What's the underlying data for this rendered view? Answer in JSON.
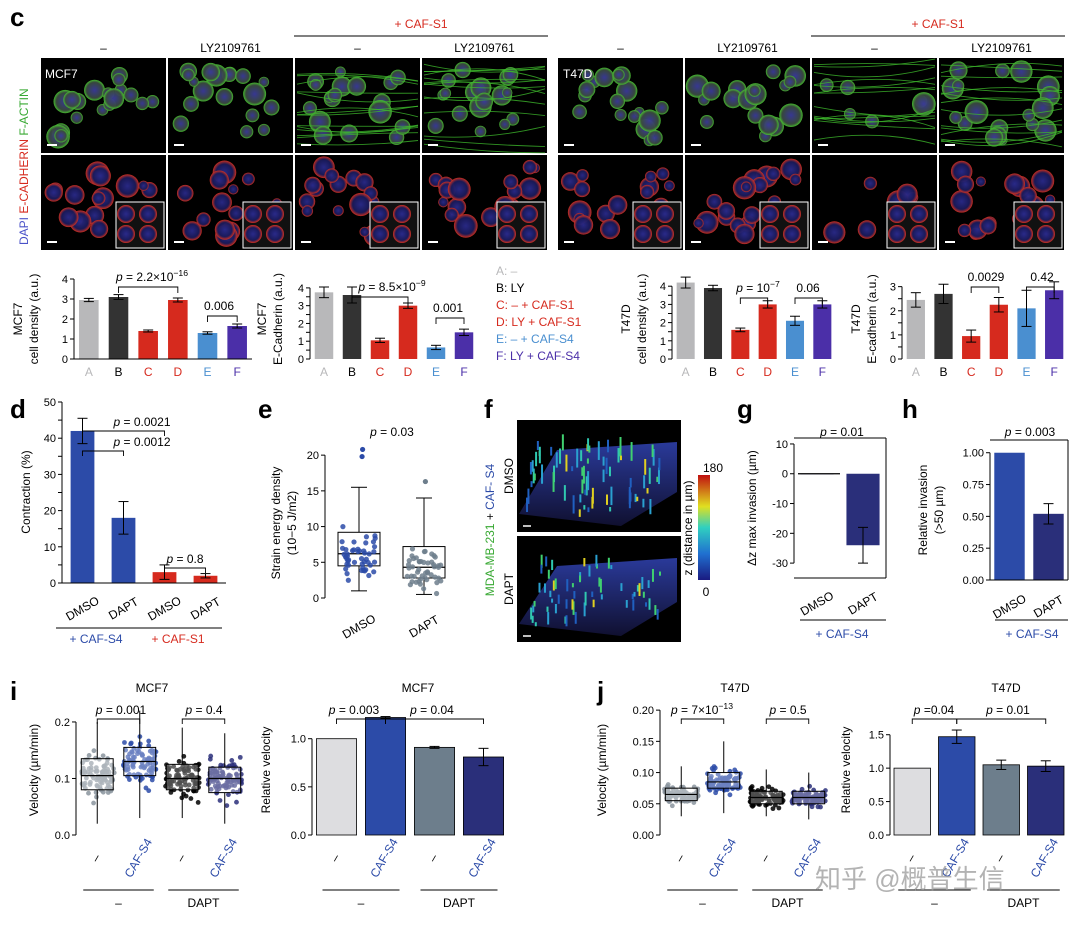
{
  "panel_labels": [
    "c",
    "d",
    "e",
    "f",
    "g",
    "h",
    "i",
    "j"
  ],
  "colors": {
    "red": "#d62a1e",
    "blue": "#2c4ba8",
    "navy": "#2a2f7a",
    "lightgray": "#b8b8ba",
    "dark": "#333333",
    "lightblue": "#4a8fd0",
    "purple": "#4b2fa8",
    "slate": "#6d7e8c",
    "grayish": "#dddde0"
  },
  "section_c": {
    "mcf7_header": {
      "top": "+ CAF-S1",
      "cond": [
        "–",
        "LY2109761",
        "–",
        "LY2109761"
      ]
    },
    "t47d_header": {
      "top": "+ CAF-S1",
      "cond": [
        "–",
        "LY2109761",
        "–",
        "LY2109761"
      ]
    },
    "mcf7_label": "MCF7",
    "t47d_label": "T47D",
    "side_label_parts": [
      "DAPI ",
      "E-CADHERIN ",
      "F-ACTIN"
    ],
    "legend": [
      "A: –",
      "B: LY",
      "C: – + CAF-S1",
      "D: LY + CAF-S1",
      "E: – + CAF-S4",
      "F: LY + CAF-S4"
    ]
  },
  "chart_data": [
    {
      "id": "c_mcf7_density",
      "type": "bar",
      "ylabel": "MCF7\ncell density (a.u.)",
      "categories": [
        "A",
        "B",
        "C",
        "D",
        "E",
        "F"
      ],
      "values": [
        2.95,
        3.1,
        1.4,
        2.95,
        1.3,
        1.65
      ],
      "errors": [
        0.08,
        0.12,
        0.05,
        0.1,
        0.06,
        0.1
      ],
      "ylim": [
        0,
        4
      ],
      "yticks": [
        0,
        1,
        2,
        3,
        4
      ],
      "annotations": [
        "p = 2.2×10−16",
        "0.006"
      ]
    },
    {
      "id": "c_mcf7_ecad",
      "type": "bar",
      "ylabel": "MCF7\nE-Cadherin (a.u.)",
      "categories": [
        "A",
        "B",
        "C",
        "D",
        "E",
        "F"
      ],
      "values": [
        3.75,
        3.6,
        1.05,
        3.0,
        0.65,
        1.5
      ],
      "errors": [
        0.3,
        0.45,
        0.12,
        0.15,
        0.12,
        0.18
      ],
      "ylim": [
        0,
        4.5
      ],
      "yticks": [
        0,
        0.5,
        1,
        1.5,
        2,
        2.5,
        3,
        3.5,
        4
      ],
      "annotations": [
        "p = 8.5×10−9",
        "0.001"
      ]
    },
    {
      "id": "c_t47d_density",
      "type": "bar",
      "ylabel": "T47D\ncell density (a.u.)",
      "categories": [
        "A",
        "B",
        "C",
        "D",
        "E",
        "F"
      ],
      "values": [
        4.2,
        3.9,
        1.6,
        3.0,
        2.1,
        3.0
      ],
      "errors": [
        0.3,
        0.15,
        0.1,
        0.2,
        0.25,
        0.2
      ],
      "ylim": [
        0,
        5
      ],
      "yticks": [
        0,
        0.5,
        1,
        1.5,
        2,
        2.5,
        3,
        3.5,
        4
      ],
      "annotations": [
        "p = 10−7",
        "0.06"
      ]
    },
    {
      "id": "c_t47d_ecad",
      "type": "bar",
      "ylabel": "T47D\nE-cadherin (a.u.)",
      "categories": [
        "A",
        "B",
        "C",
        "D",
        "E",
        "F"
      ],
      "values": [
        2.45,
        2.7,
        0.95,
        2.25,
        2.1,
        2.85
      ],
      "errors": [
        0.3,
        0.4,
        0.25,
        0.3,
        0.75,
        0.35
      ],
      "ylim": [
        0,
        3.4
      ],
      "yticks": [
        0,
        0.5,
        1,
        1.5,
        2,
        2.5,
        3
      ],
      "annotations": [
        "0.0029",
        "0.42"
      ]
    },
    {
      "id": "d",
      "type": "bar",
      "ylabel": "Contraction (%)",
      "categories": [
        "DMSO",
        "DAPT",
        "DMSO",
        "DAPT"
      ],
      "values": [
        42,
        18,
        3,
        2
      ],
      "errors": [
        3.5,
        4.5,
        2,
        0.6
      ],
      "ylim": [
        0,
        50
      ],
      "yticks": [
        0,
        5,
        10,
        15,
        20,
        25,
        30,
        35,
        40,
        45,
        50
      ],
      "annotations": [
        "p = 0.0021",
        "p = 0.0012",
        "p = 0.8"
      ],
      "groups": [
        "+ CAF-S4",
        "+ CAF-S1"
      ]
    },
    {
      "id": "e",
      "type": "box",
      "ylabel": "Strain energy density\n(10−5 J/m2)",
      "categories": [
        "DMSO",
        "DAPT"
      ],
      "stats": [
        {
          "whislo": 1,
          "q1": 4.5,
          "med": 6.2,
          "q3": 9.2,
          "whishi": 15.5
        },
        {
          "whislo": 0.5,
          "q1": 2.8,
          "med": 4.3,
          "q3": 7.2,
          "whishi": 14
        }
      ],
      "outliers": [
        [
          20.8,
          19.8
        ],
        [
          16.3
        ]
      ],
      "ylim": [
        0,
        21
      ],
      "yticks": [
        0,
        5,
        10,
        15,
        20
      ],
      "annotations": [
        "p = 0.03"
      ]
    },
    {
      "id": "f",
      "type": "heatmap",
      "side_label_parts": [
        "MDA-MB-231",
        " + ",
        "CAF- S4"
      ],
      "rows": [
        "DMSO",
        "DAPT"
      ],
      "colorbar_label": "z (distance in µm)",
      "colorbar_ticks": [
        "180",
        "0"
      ]
    },
    {
      "id": "g",
      "type": "bar",
      "ylabel": "Δz max invasion (µm)",
      "categories": [
        "DMSO",
        "DAPT"
      ],
      "values": [
        0,
        -24
      ],
      "errors": [
        0,
        6
      ],
      "ylim": [
        -35,
        12
      ],
      "yticks": [
        10,
        0,
        -10,
        -20,
        -30
      ],
      "annotations": [
        "p = 0.01"
      ],
      "group": "+ CAF-S4"
    },
    {
      "id": "h",
      "type": "bar",
      "ylabel": "Relative invasion\n(>50 µm)",
      "categories": [
        "DMSO",
        "DAPT"
      ],
      "values": [
        1.0,
        0.52
      ],
      "errors": [
        0,
        0.08
      ],
      "ylim": [
        0,
        1.1
      ],
      "yticks": [
        0,
        0.25,
        0.5,
        0.75,
        1.0
      ],
      "annotations": [
        "p = 0.003"
      ],
      "group": "+ CAF-S4"
    },
    {
      "id": "i_left",
      "type": "box",
      "title": "MCF7",
      "ylabel": "Velocity (µm/min)",
      "categories": [
        "–",
        "CAF-S4",
        "–",
        "CAF-S4"
      ],
      "stats": [
        {
          "whislo": 0.02,
          "q1": 0.08,
          "med": 0.105,
          "q3": 0.135,
          "whislo2": 0,
          "whishi": 0.2
        },
        {
          "whislo": 0.03,
          "q1": 0.105,
          "med": 0.13,
          "q3": 0.155,
          "whishi": 0.22
        },
        {
          "whislo": 0.03,
          "q1": 0.08,
          "med": 0.1,
          "q3": 0.125,
          "whishi": 0.19
        },
        {
          "whislo": 0.02,
          "q1": 0.075,
          "med": 0.1,
          "q3": 0.12,
          "whishi": 0.18
        }
      ],
      "ylim": [
        0,
        0.23
      ],
      "yticks": [
        0,
        0.1,
        0.2
      ],
      "annotations": [
        "p = 0.001",
        "p = 0.4"
      ],
      "groups": [
        "–",
        "DAPT"
      ]
    },
    {
      "id": "i_right",
      "type": "bar",
      "title": "MCF7",
      "ylabel": "Relative velocity",
      "categories": [
        "–",
        "CAF-S4",
        "–",
        "CAF-S4"
      ],
      "values": [
        1.0,
        1.22,
        0.91,
        0.81
      ],
      "errors": [
        0,
        0.01,
        0.01,
        0.09
      ],
      "ylim": [
        0,
        1.35
      ],
      "yticks": [
        0,
        0.5,
        1.0
      ],
      "annotations": [
        "p = 0.003",
        "p = 0.04"
      ],
      "groups": [
        "–",
        "DAPT"
      ]
    },
    {
      "id": "j_left",
      "type": "box",
      "title": "T47D",
      "ylabel": "Velocity (µm/min)",
      "categories": [
        "–",
        "CAF-S4",
        "–",
        "CAF-S4"
      ],
      "stats": [
        {
          "whislo": 0.03,
          "q1": 0.055,
          "med": 0.065,
          "q3": 0.075,
          "whishi": 0.11
        },
        {
          "whislo": 0.035,
          "q1": 0.075,
          "med": 0.085,
          "q3": 0.1,
          "whishi": 0.15
        },
        {
          "whislo": 0.03,
          "q1": 0.05,
          "med": 0.06,
          "q3": 0.07,
          "whishi": 0.105
        },
        {
          "whislo": 0.025,
          "q1": 0.05,
          "med": 0.06,
          "q3": 0.07,
          "whishi": 0.1
        }
      ],
      "ylim": [
        0,
        0.205
      ],
      "yticks": [
        0,
        0.05,
        0.1,
        0.15,
        0.2
      ],
      "annotations": [
        "p = 7×10−13",
        "p = 0.5"
      ],
      "groups": [
        "–",
        "DAPT"
      ]
    },
    {
      "id": "j_right",
      "type": "bar",
      "title": "T47D",
      "ylabel": "Relative velocity",
      "categories": [
        "–",
        "CAF-S4",
        "–",
        "CAF-S4"
      ],
      "values": [
        1.0,
        1.47,
        1.05,
        1.03
      ],
      "errors": [
        0,
        0.1,
        0.07,
        0.08
      ],
      "ylim": [
        0,
        1.75
      ],
      "yticks": [
        0,
        0.5,
        1.0,
        1.5
      ],
      "annotations": [
        "p =0.04",
        "p = 0.01"
      ],
      "groups": [
        "–",
        "DAPT"
      ]
    }
  ],
  "watermark": "知乎 @概普生信"
}
